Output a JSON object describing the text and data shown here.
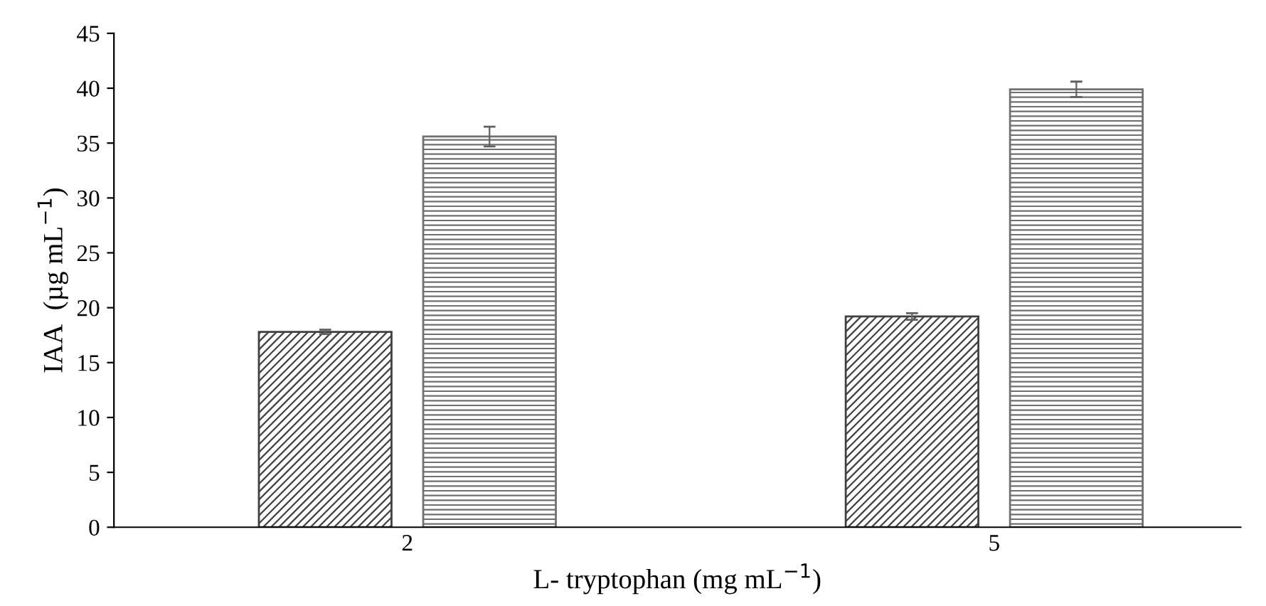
{
  "chart_data": {
    "type": "bar",
    "xlabel": "L- tryptophan (mg mL$^{−1}$)",
    "ylabel": "IAA  (µg mL$^{−1}$)",
    "categories": [
      "2",
      "5"
    ],
    "series": [
      {
        "color": "#404040",
        "values": [
          17.8,
          19.2
        ],
        "errors": [
          0.2,
          0.3
        ]
      },
      {
        "color": "#707070",
        "values": [
          35.6,
          39.9
        ],
        "errors": [
          0.9,
          0.7
        ]
      }
    ],
    "ylim": [
      0,
      45
    ],
    "yticks": [
      0,
      5,
      10,
      15,
      20,
      25,
      30,
      35,
      40,
      45
    ],
    "grid": false
  }
}
